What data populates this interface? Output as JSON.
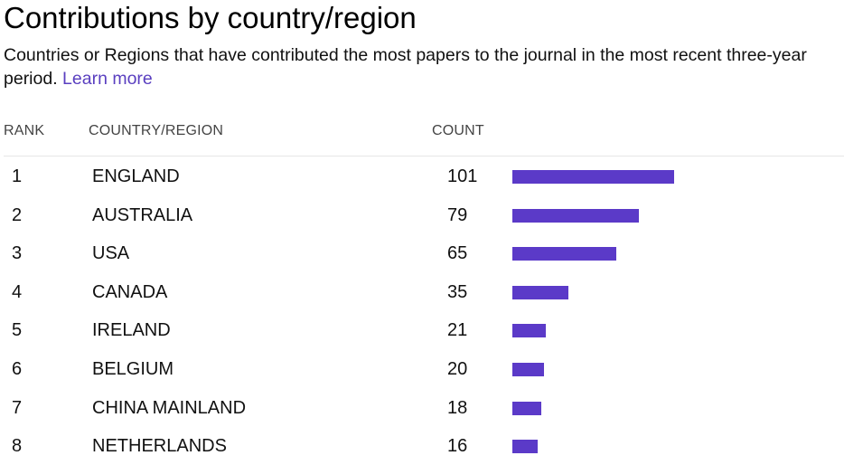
{
  "title": "Contributions by country/region",
  "description": "Countries or Regions that have contributed the most papers to the journal in the most recent three-year period.",
  "learn_more": "Learn more",
  "columns": {
    "rank": "RANK",
    "country": "COUNTRY/REGION",
    "count": "COUNT"
  },
  "colors": {
    "bar": "#5b3ac8",
    "link": "#5a3fc0"
  },
  "rows": [
    {
      "rank": "1",
      "country": "ENGLAND",
      "count": 101
    },
    {
      "rank": "2",
      "country": "AUSTRALIA",
      "count": 79
    },
    {
      "rank": "3",
      "country": "USA",
      "count": 65
    },
    {
      "rank": "4",
      "country": "CANADA",
      "count": 35
    },
    {
      "rank": "5",
      "country": "IRELAND",
      "count": 21
    },
    {
      "rank": "6",
      "country": "BELGIUM",
      "count": 20
    },
    {
      "rank": "7",
      "country": "CHINA MAINLAND",
      "count": 18
    },
    {
      "rank": "8",
      "country": "NETHERLANDS",
      "count": 16
    }
  ]
}
